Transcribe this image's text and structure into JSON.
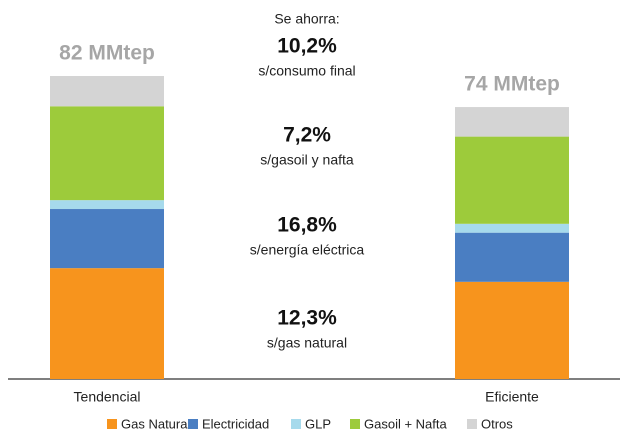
{
  "chart_data": {
    "type": "stacked_bar",
    "categories": [
      "Tendencial",
      "Eficiente"
    ],
    "series": [
      {
        "name": "Gas Natural",
        "color": "#f7941d",
        "values": [
          30.0,
          26.3
        ]
      },
      {
        "name": "Electricidad",
        "color": "#4a7ec2",
        "values": [
          16.0,
          13.3
        ]
      },
      {
        "name": "GLP",
        "color": "#a6daec",
        "values": [
          2.4,
          2.4
        ]
      },
      {
        "name": "Gasoil + Nafta",
        "color": "#9dcb3b",
        "values": [
          25.4,
          23.6
        ]
      },
      {
        "name": "Otros",
        "color": "#d4d4d4",
        "values": [
          8.2,
          8.0
        ]
      }
    ],
    "total_labels": [
      "82 MMtep",
      "74 MMtep"
    ],
    "savings_title": "Se ahorra:",
    "savings": [
      {
        "percent": "10,2%",
        "label": "s/consumo final"
      },
      {
        "percent": "7,2%",
        "label": "s/gasoil y nafta"
      },
      {
        "percent": "16,8%",
        "label": "s/energía eléctrica"
      },
      {
        "percent": "12,3%",
        "label": "s/gas natural"
      }
    ],
    "ylim": [
      0,
      82
    ],
    "legend": "bottom"
  }
}
